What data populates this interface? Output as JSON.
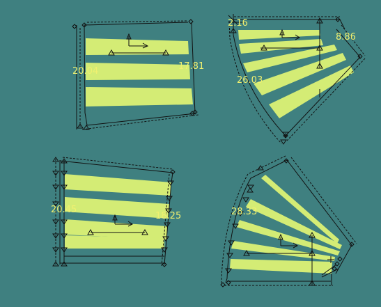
{
  "colors": {
    "background": "#3f8080",
    "stripe": "#d4ec75",
    "outline": "#111111",
    "label": "#f0f070"
  },
  "panels": [
    {
      "id": "top-left",
      "labels": [
        "20.04",
        "17.81"
      ]
    },
    {
      "id": "top-right",
      "labels": [
        "2.16",
        "8.86",
        "26.03"
      ]
    },
    {
      "id": "bottom-left",
      "labels": [
        "20.45",
        "18.25"
      ]
    },
    {
      "id": "bottom-right",
      "labels": [
        "28.33"
      ]
    }
  ]
}
